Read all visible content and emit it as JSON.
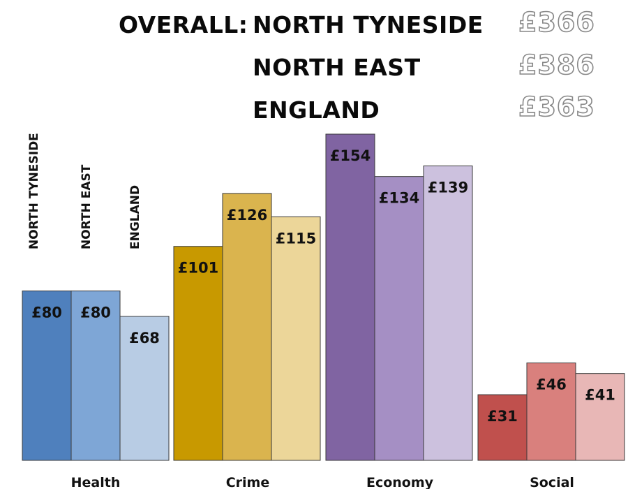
{
  "header": {
    "overall_label": "OVERALL:",
    "rows": [
      {
        "name": "NORTH TYNESIDE",
        "total": "£366"
      },
      {
        "name": "NORTH EAST",
        "total": "£386"
      },
      {
        "name": "ENGLAND",
        "total": "£363"
      }
    ]
  },
  "chart_data": {
    "type": "bar",
    "categories": [
      "Health",
      "Crime",
      "Economy",
      "Social"
    ],
    "series": [
      {
        "name": "NORTH TYNESIDE",
        "values": [
          80,
          101,
          154,
          31
        ]
      },
      {
        "name": "NORTH EAST",
        "values": [
          80,
          126,
          134,
          46
        ]
      },
      {
        "name": "ENGLAND",
        "values": [
          68,
          115,
          139,
          41
        ]
      }
    ],
    "data_labels": [
      [
        "£80",
        "£80",
        "£68"
      ],
      [
        "£101",
        "£126",
        "£115"
      ],
      [
        "£154",
        "£134",
        "£139"
      ],
      [
        "£31",
        "£46",
        "£41"
      ]
    ],
    "ylim": [
      0,
      160
    ],
    "colors": [
      [
        "#4f80bd",
        "#7ea6d6",
        "#b8cce4"
      ],
      [
        "#c89900",
        "#dab44e",
        "#ecd699"
      ],
      [
        "#8064a2",
        "#a58fc4",
        "#ccc1de"
      ],
      [
        "#c0504d",
        "#d9807d",
        "#e8b7b6"
      ]
    ],
    "legend_placement": "vertical labels top-left"
  }
}
